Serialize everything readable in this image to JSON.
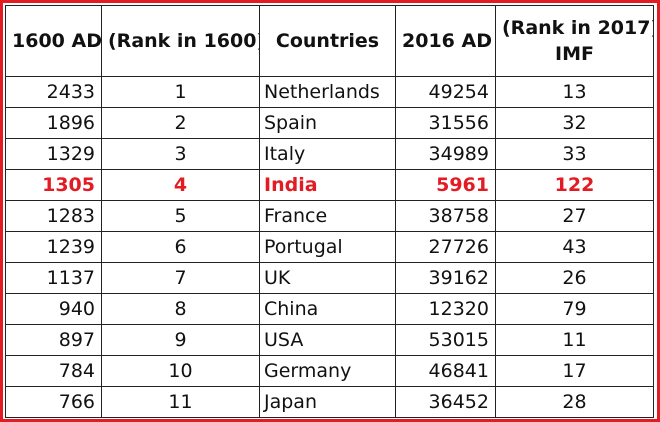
{
  "table": {
    "headers": {
      "col1": "1600 AD",
      "col2": "(Rank in 1600)",
      "col3": "Countries",
      "col4": "2016 AD",
      "col5_line1": "(Rank in 2017)",
      "col5_line2": "IMF"
    },
    "rows": [
      {
        "ad1600": "2433",
        "rank1600": "1",
        "country": "Netherlands",
        "ad2016": "49254",
        "rank2017": "13"
      },
      {
        "ad1600": "1896",
        "rank1600": "2",
        "country": "Spain",
        "ad2016": "31556",
        "rank2017": "32"
      },
      {
        "ad1600": "1329",
        "rank1600": "3",
        "country": "Italy",
        "ad2016": "34989",
        "rank2017": "33"
      },
      {
        "ad1600": "1305",
        "rank1600": "4",
        "country": "India",
        "ad2016": "5961",
        "rank2017": "122"
      },
      {
        "ad1600": "1283",
        "rank1600": "5",
        "country": "France",
        "ad2016": "38758",
        "rank2017": "27"
      },
      {
        "ad1600": "1239",
        "rank1600": "6",
        "country": "Portugal",
        "ad2016": "27726",
        "rank2017": "43"
      },
      {
        "ad1600": "1137",
        "rank1600": "7",
        "country": "UK",
        "ad2016": "39162",
        "rank2017": "26"
      },
      {
        "ad1600": "940",
        "rank1600": "8",
        "country": "China",
        "ad2016": "12320",
        "rank2017": "79"
      },
      {
        "ad1600": "897",
        "rank1600": "9",
        "country": "USA",
        "ad2016": "53015",
        "rank2017": "11"
      },
      {
        "ad1600": "784",
        "rank1600": "10",
        "country": "Germany",
        "ad2016": "46841",
        "rank2017": "17"
      },
      {
        "ad1600": "766",
        "rank1600": "11",
        "country": "Japan",
        "ad2016": "36452",
        "rank2017": "28"
      }
    ],
    "highlight_row_index": 3,
    "colors": {
      "border": "#e31b23",
      "highlight_text": "#e31b23",
      "text": "#111111"
    }
  }
}
